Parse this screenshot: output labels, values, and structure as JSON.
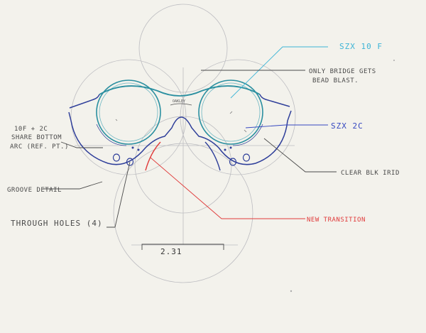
{
  "annotations": {
    "szx10f": "SZX 10 F",
    "bridge_line1": "ONLY BRIDGE GETS",
    "bridge_line2": "BEAD BLAST.",
    "szx2c": "SZX 2C",
    "arc_line1": "10F + 2C",
    "arc_line2": "SHARE BOTTOM",
    "arc_line3": "ARC (REF. PT.)",
    "clear_blk": "CLEAR BLK IRID",
    "groove": "GROOVE DETAIL",
    "through_holes": "THROUGH HOLES (4)",
    "new_transition": "NEW TRANSITION",
    "dimension": "2.31",
    "logo": "OAKLEY"
  },
  "colors": {
    "paper": "#f3f2ec",
    "construction": "#b9b9bd",
    "lens_teal": "#2a8fa0",
    "frame_blue": "#2f3f9a",
    "cyan_callout": "#3cb4d6",
    "blue_callout": "#3447c0",
    "red_callout": "#e03a3a",
    "graphite": "#4a4a4a"
  }
}
